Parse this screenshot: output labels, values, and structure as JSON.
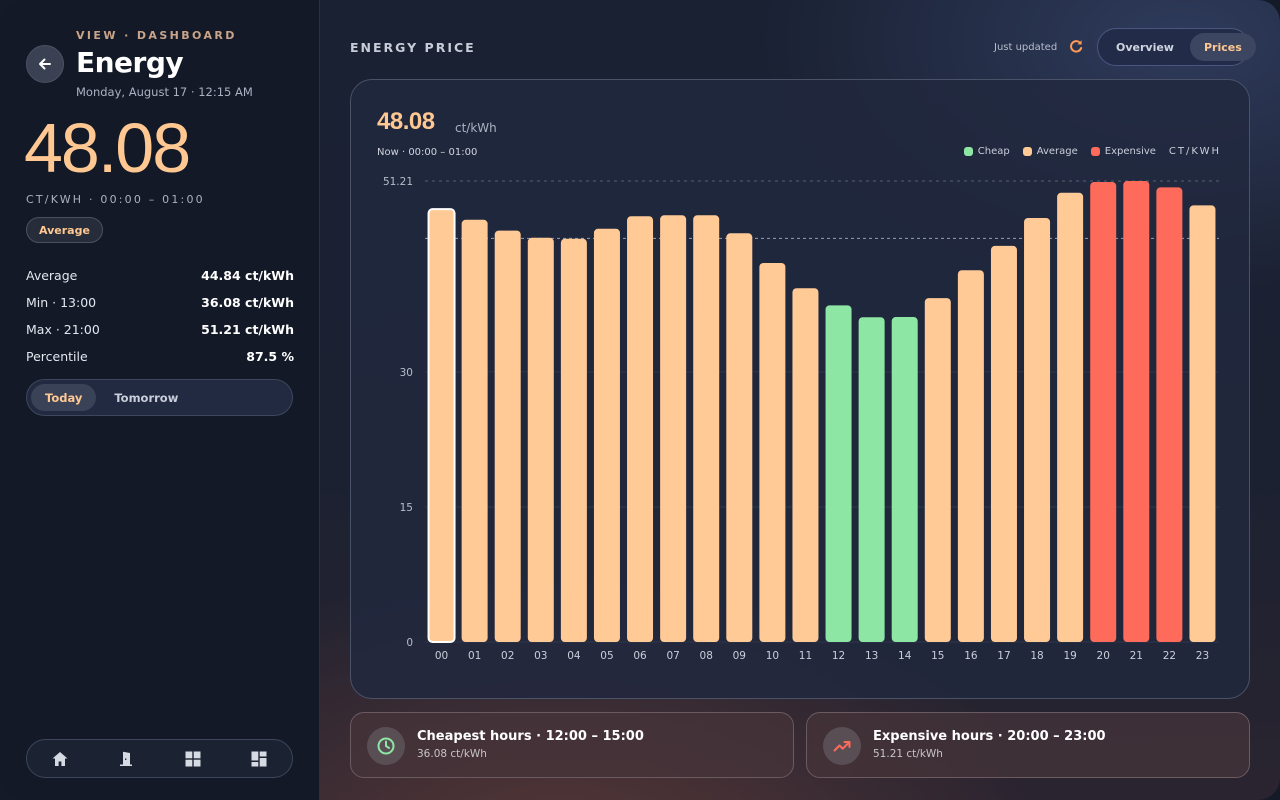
{
  "sidebar": {
    "eyebrow": "VIEW · DASHBOARD",
    "title": "Energy",
    "subtitle": "Monday, August 17 · 12:15 AM",
    "big_price": "48.08",
    "unit_range": "CT/KWH · 00:00 – 01:00",
    "badge": "Average",
    "stats": [
      {
        "label": "Average",
        "value": "44.84 ct/kWh"
      },
      {
        "label": "Min · 13:00",
        "value": "36.08 ct/kWh"
      },
      {
        "label": "Max · 21:00",
        "value": "51.21 ct/kWh"
      },
      {
        "label": "Percentile",
        "value": "87.5 %"
      }
    ],
    "day_options": [
      "Today",
      "Tomorrow"
    ],
    "day_selected": "Today",
    "nav_icons": [
      "home-icon",
      "door-icon",
      "grid-icon",
      "dashboard-icon"
    ]
  },
  "header": {
    "label": "ENERGY PRICE",
    "updated": "Just updated",
    "view_options": [
      "Overview",
      "Prices"
    ],
    "view_selected": "Prices"
  },
  "chart_card": {
    "current_price": "48.08",
    "current_unit": "ct/kWh",
    "now_range": "Now · 00:00 – 01:00",
    "legend": {
      "cheap": "Cheap",
      "average": "Average",
      "expensive": "Expensive",
      "unit": "CT/KWH"
    }
  },
  "chart_data": {
    "type": "bar",
    "categories": [
      "00",
      "01",
      "02",
      "03",
      "04",
      "05",
      "06",
      "07",
      "08",
      "09",
      "10",
      "11",
      "12",
      "13",
      "14",
      "15",
      "16",
      "17",
      "18",
      "19",
      "20",
      "21",
      "22",
      "23"
    ],
    "values": [
      48.08,
      46.9,
      45.7,
      44.9,
      44.8,
      45.9,
      47.3,
      47.4,
      47.4,
      45.4,
      42.1,
      39.3,
      37.4,
      36.08,
      36.1,
      38.2,
      41.3,
      44.0,
      47.1,
      49.9,
      51.1,
      51.21,
      50.5,
      48.5
    ],
    "classes": [
      "average",
      "average",
      "average",
      "average",
      "average",
      "average",
      "average",
      "average",
      "average",
      "average",
      "average",
      "average",
      "cheap",
      "cheap",
      "cheap",
      "average",
      "average",
      "average",
      "average",
      "average",
      "expensive",
      "expensive",
      "expensive",
      "average"
    ],
    "yticks": [
      0,
      15,
      30,
      51.21
    ],
    "ylim": [
      0,
      51.21
    ],
    "average_line": 44.84,
    "highlight_index": 0,
    "colors": {
      "cheap": "#8ee6a4",
      "average": "#ffca96",
      "expensive": "#ff6b5a"
    }
  },
  "info_cards": {
    "cheap": {
      "title": "Cheapest hours · 12:00 – 15:00",
      "sub": "36.08 ct/kWh"
    },
    "expensive": {
      "title": "Expensive hours · 20:00 – 23:00",
      "sub": "51.21 ct/kWh"
    }
  }
}
